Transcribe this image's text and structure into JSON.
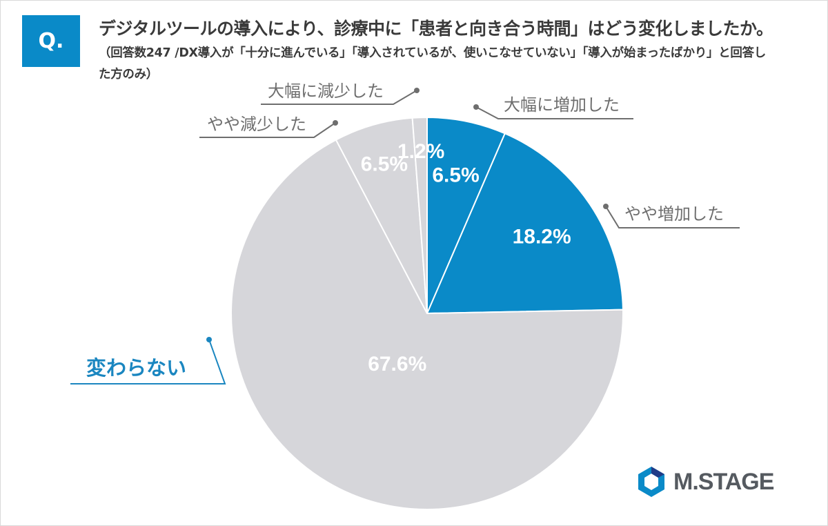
{
  "header": {
    "badge": "Q.",
    "title": "デジタルツールの導入により、診療中に「患者と向き合う時間」はどう変化しましたか。",
    "subtitle": "（回答数247 /DX導入が「十分に進んでいる」「導入されているが、使いこなせていない」「導入が始まったばかり」と回答した方のみ）"
  },
  "logo": {
    "text": "M.STAGE",
    "icon": "mstage-hexagon-logo-icon"
  },
  "colors": {
    "increase": "#0a8ac8",
    "other": "#d6d6da",
    "label_gray": "#6e6e6e",
    "label_blue": "#1a86c0"
  },
  "chart_data": {
    "type": "pie",
    "start_angle": "12 o'clock, clockwise",
    "slices": [
      {
        "label": "大幅に増加した",
        "value": 6.5,
        "display": "6.5%",
        "color": "#0a8ac8"
      },
      {
        "label": "やや増加した",
        "value": 18.2,
        "display": "18.2%",
        "color": "#0a8ac8"
      },
      {
        "label": "変わらない",
        "value": 67.6,
        "display": "67.6%",
        "color": "#d6d6da"
      },
      {
        "label": "やや減少した",
        "value": 6.5,
        "display": "6.5%",
        "color": "#d6d6da"
      },
      {
        "label": "大幅に減少した",
        "value": 1.2,
        "display": "1.2%",
        "color": "#d6d6da"
      }
    ]
  }
}
